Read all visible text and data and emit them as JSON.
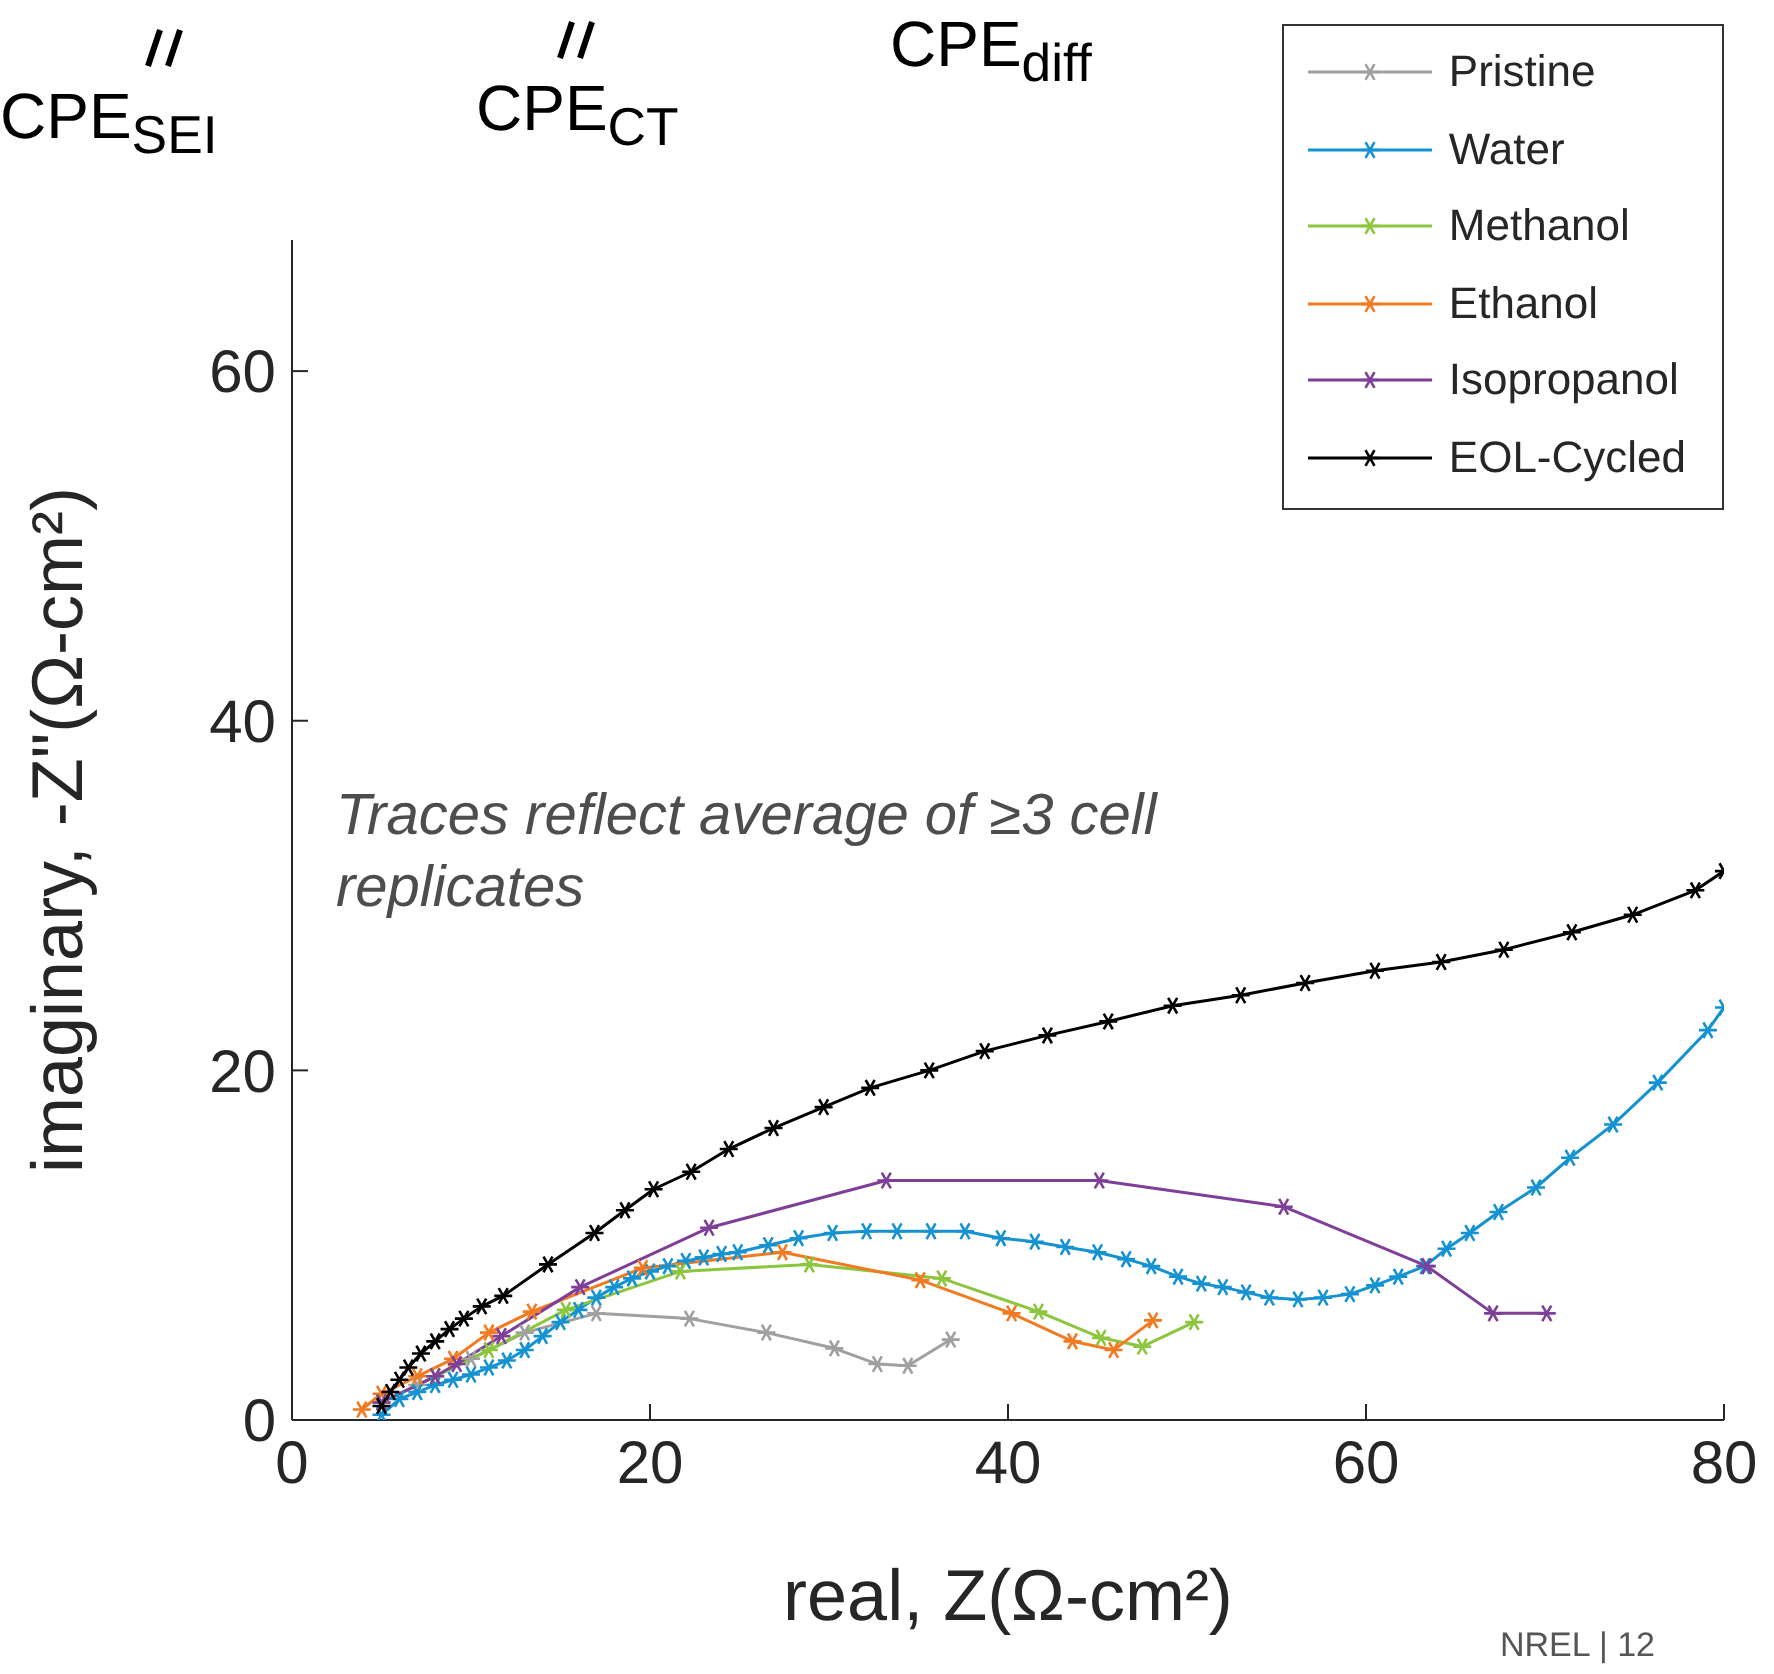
{
  "chart_data": {
    "type": "line",
    "xlabel": "real, Z(Ω-cm²)",
    "ylabel": "imaginary, -Z\"(Ω-cm²)",
    "xlim": [
      0,
      80
    ],
    "ylim": [
      0,
      67.5
    ],
    "xticks": [
      0,
      20,
      40,
      60,
      80
    ],
    "yticks": [
      0,
      20,
      40,
      60
    ],
    "grid": false,
    "legend": "top right",
    "marker": "cross",
    "line_style": "solid",
    "annotations": [
      "Traces reflect average of ≥3 cell replicates",
      "CPE$_{SEI}$",
      "CPE$_{CT}$",
      "CPE$_{diff}$",
      "NREL  |  12"
    ],
    "series": [
      {
        "name": "Pristine",
        "color": "#a0a0a0",
        "x": [
          5,
          7,
          10,
          13,
          17,
          22.2,
          26.5,
          30.3,
          32.7,
          34.4,
          36.8
        ],
        "values": [
          1,
          2,
          3.5,
          5,
          6.1,
          5.8,
          5,
          4.1,
          3.2,
          3.1,
          4.6
        ]
      },
      {
        "name": "Water",
        "color": "#1592d2",
        "x": [
          5,
          6,
          7,
          8,
          9,
          10,
          11,
          12,
          13,
          14,
          15,
          16,
          17,
          18,
          19,
          20,
          21,
          22,
          23,
          24,
          24.9,
          26.6,
          28.3,
          30.2,
          32.1,
          33.8,
          35.7,
          37.6,
          39.6,
          41.5,
          43.2,
          45,
          46.6,
          48,
          49.5,
          50.8,
          52,
          53.3,
          54.6,
          56.2,
          57.6,
          59.1,
          60.5,
          61.8,
          63.3,
          64.5,
          65.8,
          67.4,
          69.5,
          71.4,
          73.8,
          76.3,
          79.1,
          80
        ],
        "values": [
          0.3,
          1.2,
          1.6,
          2,
          2.3,
          2.6,
          3,
          3.4,
          4,
          4.8,
          5.6,
          6.3,
          7,
          7.6,
          8.1,
          8.5,
          8.8,
          9.1,
          9.3,
          9.5,
          9.6,
          10,
          10.4,
          10.7,
          10.8,
          10.8,
          10.8,
          10.8,
          10.4,
          10.2,
          9.9,
          9.6,
          9.2,
          8.8,
          8.2,
          7.8,
          7.6,
          7.3,
          7,
          6.9,
          7,
          7.2,
          7.7,
          8.2,
          8.8,
          9.8,
          10.7,
          11.9,
          13.3,
          15,
          16.9,
          19.3,
          22.3,
          23.6
        ]
      },
      {
        "name": "Methanol",
        "color": "#8cc63f",
        "x": [
          5,
          8,
          11,
          15.3,
          21.7,
          28.9,
          36.3,
          41.7,
          45.2,
          47.5,
          50.4
        ],
        "values": [
          1,
          2.5,
          4,
          6.3,
          8.5,
          8.9,
          8.1,
          6.2,
          4.7,
          4.2,
          5.6
        ]
      },
      {
        "name": "Ethanol",
        "color": "#f27a21",
        "x": [
          3.9,
          5,
          7,
          9,
          11,
          13.4,
          19.6,
          27.4,
          35.1,
          40.2,
          43.6,
          45.9,
          48.1
        ],
        "values": [
          0.6,
          1.5,
          2.5,
          3.5,
          5,
          6.2,
          8.7,
          9.6,
          8,
          6.1,
          4.5,
          4,
          5.7
        ]
      },
      {
        "name": "Isopropanol",
        "color": "#7e3f98",
        "x": [
          5,
          8,
          9.2,
          11.7,
          16.1,
          23.3,
          33.2,
          45.1,
          55.4,
          63.4,
          67.1,
          70.1
        ],
        "values": [
          1,
          2.5,
          3.2,
          4.8,
          7.6,
          11,
          13.7,
          13.7,
          12.2,
          8.8,
          6.1,
          6.1
        ]
      },
      {
        "name": "EOL-Cycled",
        "color": "#000000",
        "x": [
          5,
          5.5,
          6,
          6.5,
          7.2,
          8,
          8.8,
          9.6,
          10.6,
          11.8,
          14.3,
          16.9,
          18.6,
          20.2,
          22.3,
          24.4,
          26.9,
          29.7,
          32.3,
          35.6,
          38.7,
          42.2,
          45.6,
          49.2,
          53,
          56.6,
          60.5,
          64.2,
          67.7,
          71.5,
          74.9,
          78.4,
          80
        ],
        "values": [
          0.8,
          1.6,
          2.3,
          3,
          3.8,
          4.5,
          5.2,
          5.8,
          6.5,
          7.1,
          8.9,
          10.7,
          12,
          13.2,
          14.2,
          15.5,
          16.7,
          17.9,
          19,
          20,
          21.1,
          22,
          22.8,
          23.7,
          24.3,
          25,
          25.7,
          26.2,
          26.9,
          27.9,
          28.9,
          30.3,
          31.4
        ]
      }
    ]
  }
}
